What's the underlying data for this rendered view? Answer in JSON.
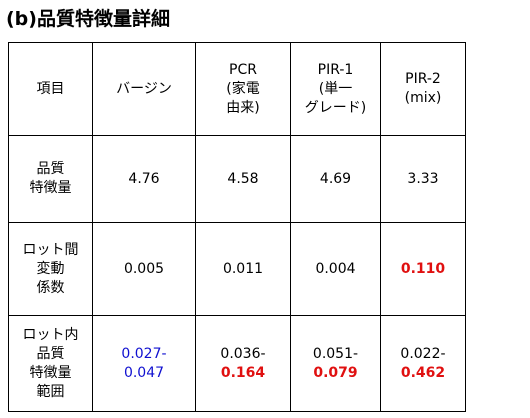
{
  "title": "(b)品質特徴量詳細",
  "table": {
    "header": [
      [
        "項目"
      ],
      [
        "バージン"
      ],
      [
        "PCR",
        "(家電",
        "由来)"
      ],
      [
        "PIR-1",
        "(単一",
        "グレード)"
      ],
      [
        "PIR-2",
        "(mix)"
      ]
    ],
    "rows": [
      [
        [
          "品質",
          "特徴量"
        ],
        [
          "4.76"
        ],
        [
          "4.58"
        ],
        [
          "4.69"
        ],
        [
          "3.33"
        ]
      ],
      [
        [
          "ロット間",
          "変動",
          "係数"
        ],
        [
          "0.005"
        ],
        [
          "0.011"
        ],
        [
          "0.004"
        ],
        [
          "0.110"
        ]
      ],
      [
        [
          "ロット内",
          "品質",
          "特徴量",
          "範囲"
        ],
        [
          "0.027-",
          "0.047"
        ],
        [
          "0.036-",
          "0.164"
        ],
        [
          "0.051-",
          "0.079"
        ],
        [
          "0.022-",
          "0.462"
        ]
      ]
    ]
  }
}
